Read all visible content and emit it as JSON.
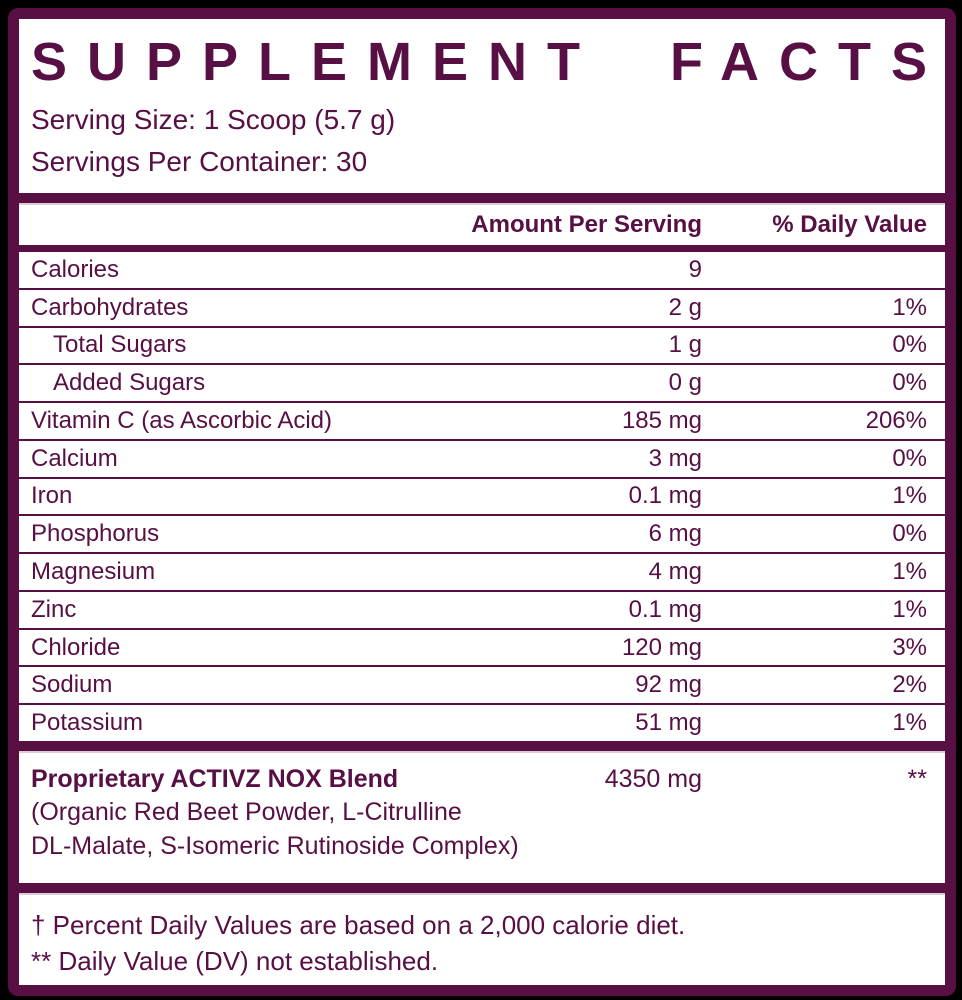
{
  "colors": {
    "maroon": "#570f44",
    "background": "#000000",
    "panel": "#ffffff"
  },
  "title": {
    "word1": "SUPPLEMENT",
    "word2": "FACTS"
  },
  "serving": {
    "size": "Serving Size: 1 Scoop (5.7 g)",
    "per_container": "Servings Per Container: 30"
  },
  "table": {
    "headers": {
      "amount": "Amount Per Serving",
      "dv": "% Daily Value"
    },
    "rows": [
      {
        "label": "Calories",
        "amount": "9",
        "dv": "",
        "indent": false
      },
      {
        "label": "Carbohydrates",
        "amount": "2 g",
        "dv": "1%",
        "indent": false
      },
      {
        "label": "Total Sugars",
        "amount": "1 g",
        "dv": "0%",
        "indent": true
      },
      {
        "label": "Added Sugars",
        "amount": "0 g",
        "dv": "0%",
        "indent": true
      },
      {
        "label": "Vitamin C (as Ascorbic Acid)",
        "amount": "185 mg",
        "dv": "206%",
        "indent": false
      },
      {
        "label": "Calcium",
        "amount": "3 mg",
        "dv": "0%",
        "indent": false
      },
      {
        "label": "Iron",
        "amount": "0.1 mg",
        "dv": "1%",
        "indent": false
      },
      {
        "label": "Phosphorus",
        "amount": "6 mg",
        "dv": "0%",
        "indent": false
      },
      {
        "label": "Magnesium",
        "amount": "4 mg",
        "dv": "1%",
        "indent": false
      },
      {
        "label": "Zinc",
        "amount": "0.1 mg",
        "dv": "1%",
        "indent": false
      },
      {
        "label": "Chloride",
        "amount": "120 mg",
        "dv": "3%",
        "indent": false
      },
      {
        "label": "Sodium",
        "amount": "92 mg",
        "dv": "2%",
        "indent": false
      },
      {
        "label": "Potassium",
        "amount": "51 mg",
        "dv": "1%",
        "indent": false
      }
    ]
  },
  "proprietary": {
    "name": "Proprietary ACTIVZ NOX Blend",
    "amount": "4350 mg",
    "dv": "**",
    "ingredients_line1": "(Organic Red Beet Powder, L-Citrulline",
    "ingredients_line2": "DL-Malate, S-Isomeric Rutinoside Complex)"
  },
  "footnotes": {
    "daily_value": "† Percent Daily Values are based on a 2,000 calorie diet.",
    "not_established": "** Daily Value (DV) not established."
  }
}
